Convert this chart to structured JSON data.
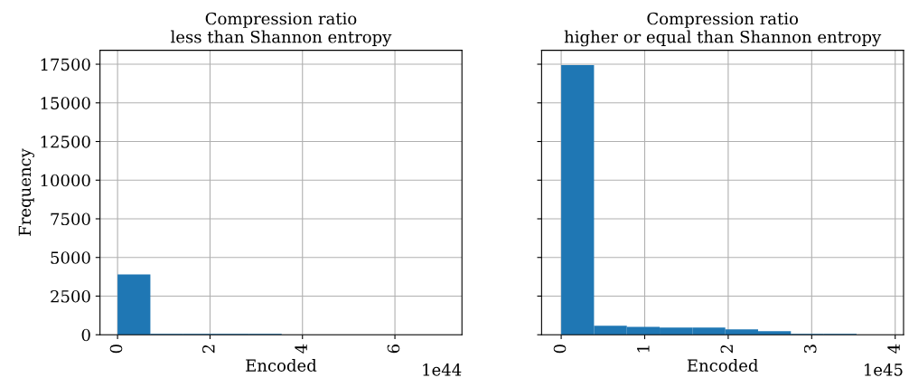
{
  "chart_data": [
    {
      "type": "histogram",
      "title": "Compression ratio\nless than Shannon entropy",
      "xlabel": "Encoded",
      "ylabel": "Frequency",
      "annotations": [
        "1e44"
      ],
      "bins": [
        0,
        0.71,
        1.42,
        2.13,
        2.84,
        3.55,
        4.26,
        4.97,
        5.68,
        6.39,
        7.1
      ],
      "values": [
        3900,
        60,
        60,
        60,
        60,
        0,
        0,
        0,
        0,
        0
      ],
      "color": "#1f77b4",
      "xlim": [
        -0.38,
        7.45
      ],
      "xticks": [
        0,
        2,
        4,
        6
      ],
      "ylim": [
        0,
        18400
      ],
      "yticks": [
        0,
        2500,
        5000,
        7500,
        10000,
        12500,
        15000,
        17500
      ],
      "grid": true
    },
    {
      "type": "histogram",
      "title": "Compression ratio\nhigher or equal than Shannon entropy",
      "xlabel": "Encoded",
      "annotations": [
        "1e45"
      ],
      "bins": [
        0,
        0.393,
        0.786,
        1.179,
        1.572,
        1.965,
        2.358,
        2.751,
        3.144,
        3.537,
        3.93
      ],
      "values": [
        17450,
        590,
        510,
        470,
        470,
        350,
        230,
        60,
        60,
        0
      ],
      "color": "#1f77b4",
      "xlim": [
        -0.235,
        4.1
      ],
      "xticks": [
        0,
        1,
        2,
        3,
        4
      ],
      "ylim": [
        0,
        18400
      ],
      "yticks": [
        0,
        2500,
        5000,
        7500,
        10000,
        12500,
        15000,
        17500
      ],
      "grid": true,
      "tick_labels": "x"
    }
  ]
}
